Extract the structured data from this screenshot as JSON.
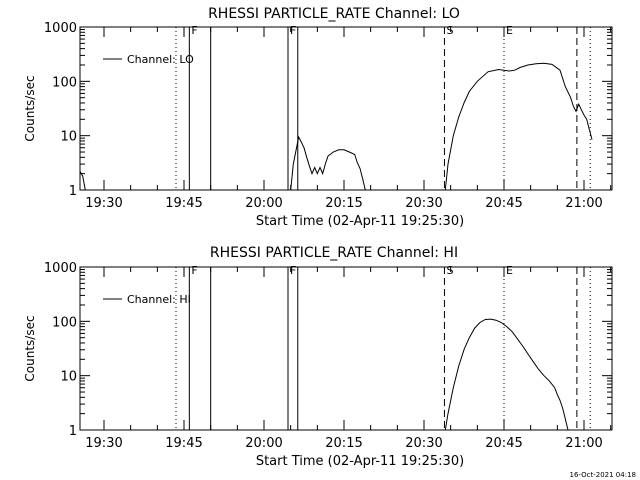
{
  "footer_timestamp": "16-Oct-2021 04:18",
  "chart_data": [
    {
      "type": "line",
      "title": "RHESSI PARTICLE_RATE Channel: LO",
      "xlabel": "Start Time (02-Apr-11 19:25:30)",
      "ylabel": "Counts/sec",
      "y_scale": "log",
      "ylim": [
        1,
        1000
      ],
      "xlim": [
        "19:25:30",
        "21:05:15"
      ],
      "y_ticks": [
        "1",
        "10",
        "100",
        "1000"
      ],
      "x_ticks": [
        "19:30",
        "19:45",
        "20:00",
        "20:15",
        "20:30",
        "20:45",
        "21:00"
      ],
      "legend": {
        "position": "top-left",
        "entries": [
          "Channel: LO"
        ]
      },
      "grid": false,
      "markers": [
        {
          "type": "dotted",
          "time": "19:43:30",
          "label": ""
        },
        {
          "type": "solid",
          "time": "19:46:00",
          "label": "F"
        },
        {
          "type": "solid",
          "time": "19:50:00",
          "label": ""
        },
        {
          "type": "solid",
          "time": "20:04:30",
          "label": "F"
        },
        {
          "type": "solid",
          "time": "20:06:20",
          "label": ""
        },
        {
          "type": "dashed",
          "time": "20:33:50",
          "label": "S"
        },
        {
          "type": "dotted",
          "time": "20:45:00",
          "label": "E"
        },
        {
          "type": "dashed",
          "time": "20:58:40",
          "label": ""
        },
        {
          "type": "dotted",
          "time": "21:01:10",
          "label": ""
        }
      ],
      "series": [
        {
          "name": "Channel: LO",
          "segments": [
            [
              [
                "19:25:30",
                2.2
              ],
              [
                "19:26:00",
                1.8
              ],
              [
                "19:26:30",
                1.0
              ]
            ],
            [
              [
                "20:05:00",
                1.0
              ],
              [
                "20:05:30",
                3.0
              ],
              [
                "20:06:30",
                9.5
              ],
              [
                "20:07:30",
                6.0
              ],
              [
                "20:08:00",
                4.0
              ],
              [
                "20:08:30",
                2.8
              ],
              [
                "20:09:00",
                2.0
              ],
              [
                "20:09:30",
                2.6
              ],
              [
                "20:10:00",
                2.0
              ],
              [
                "20:10:30",
                2.6
              ],
              [
                "20:11:00",
                2.0
              ],
              [
                "20:11:30",
                3.0
              ],
              [
                "20:12:00",
                4.2
              ],
              [
                "20:13:00",
                5.0
              ],
              [
                "20:14:00",
                5.5
              ],
              [
                "20:15:00",
                5.5
              ],
              [
                "20:16:00",
                5.0
              ],
              [
                "20:17:00",
                4.5
              ],
              [
                "20:17:30",
                3.2
              ],
              [
                "20:18:00",
                2.5
              ],
              [
                "20:18:30",
                1.6
              ],
              [
                "20:19:00",
                1.0
              ]
            ],
            [
              [
                "20:34:00",
                1.0
              ],
              [
                "20:34:30",
                3.0
              ],
              [
                "20:35:30",
                10
              ],
              [
                "20:36:30",
                22
              ],
              [
                "20:37:30",
                40
              ],
              [
                "20:38:30",
                65
              ],
              [
                "20:40:00",
                100
              ],
              [
                "20:42:00",
                150
              ],
              [
                "20:44:00",
                165
              ],
              [
                "20:45:00",
                160
              ],
              [
                "20:46:00",
                155
              ],
              [
                "20:47:00",
                160
              ],
              [
                "20:48:00",
                180
              ],
              [
                "20:49:30",
                200
              ],
              [
                "20:51:00",
                210
              ],
              [
                "20:52:30",
                215
              ],
              [
                "20:54:00",
                205
              ],
              [
                "20:55:30",
                160
              ],
              [
                "20:56:30",
                80
              ],
              [
                "20:57:30",
                50
              ],
              [
                "20:58:00",
                35
              ],
              [
                "20:58:30",
                28
              ],
              [
                "20:59:00",
                38
              ],
              [
                "20:59:30",
                30
              ],
              [
                "21:00:00",
                24
              ],
              [
                "21:00:30",
                20
              ],
              [
                "21:01:00",
                13
              ],
              [
                "21:01:30",
                8.5
              ]
            ]
          ]
        }
      ]
    },
    {
      "type": "line",
      "title": "RHESSI PARTICLE_RATE Channel: HI",
      "xlabel": "Start Time (02-Apr-11 19:25:30)",
      "ylabel": "Counts/sec",
      "y_scale": "log",
      "ylim": [
        1,
        1000
      ],
      "xlim": [
        "19:25:30",
        "21:05:15"
      ],
      "y_ticks": [
        "1",
        "10",
        "100",
        "1000"
      ],
      "x_ticks": [
        "19:30",
        "19:45",
        "20:00",
        "20:15",
        "20:30",
        "20:45",
        "21:00"
      ],
      "legend": {
        "position": "top-left",
        "entries": [
          "Channel: HI"
        ]
      },
      "grid": false,
      "markers": [
        {
          "type": "dotted",
          "time": "19:43:30",
          "label": ""
        },
        {
          "type": "solid",
          "time": "19:46:00",
          "label": "F"
        },
        {
          "type": "solid",
          "time": "19:50:00",
          "label": ""
        },
        {
          "type": "solid",
          "time": "20:04:30",
          "label": "F"
        },
        {
          "type": "solid",
          "time": "20:06:20",
          "label": ""
        },
        {
          "type": "dashed",
          "time": "20:33:50",
          "label": "S"
        },
        {
          "type": "dotted",
          "time": "20:45:00",
          "label": "E"
        },
        {
          "type": "dashed",
          "time": "20:58:40",
          "label": ""
        },
        {
          "type": "dotted",
          "time": "21:01:10",
          "label": ""
        }
      ],
      "series": [
        {
          "name": "Channel: HI",
          "segments": [
            [
              [
                "20:34:00",
                1.0
              ],
              [
                "20:34:30",
                2.0
              ],
              [
                "20:35:30",
                6.0
              ],
              [
                "20:36:30",
                15
              ],
              [
                "20:37:30",
                30
              ],
              [
                "20:38:30",
                50
              ],
              [
                "20:39:30",
                75
              ],
              [
                "20:40:30",
                95
              ],
              [
                "20:41:30",
                108
              ],
              [
                "20:42:30",
                110
              ],
              [
                "20:43:30",
                105
              ],
              [
                "20:44:30",
                95
              ],
              [
                "20:45:30",
                80
              ],
              [
                "20:46:30",
                65
              ],
              [
                "20:47:30",
                48
              ],
              [
                "20:48:30",
                35
              ],
              [
                "20:49:30",
                25
              ],
              [
                "20:50:30",
                18
              ],
              [
                "20:51:30",
                13
              ],
              [
                "20:52:30",
                10
              ],
              [
                "20:53:30",
                8
              ],
              [
                "20:54:30",
                6
              ],
              [
                "20:55:00",
                4.5
              ],
              [
                "20:55:30",
                3.5
              ],
              [
                "20:56:00",
                2.5
              ],
              [
                "20:56:30",
                1.6
              ],
              [
                "20:57:00",
                1.0
              ]
            ]
          ]
        }
      ]
    }
  ]
}
